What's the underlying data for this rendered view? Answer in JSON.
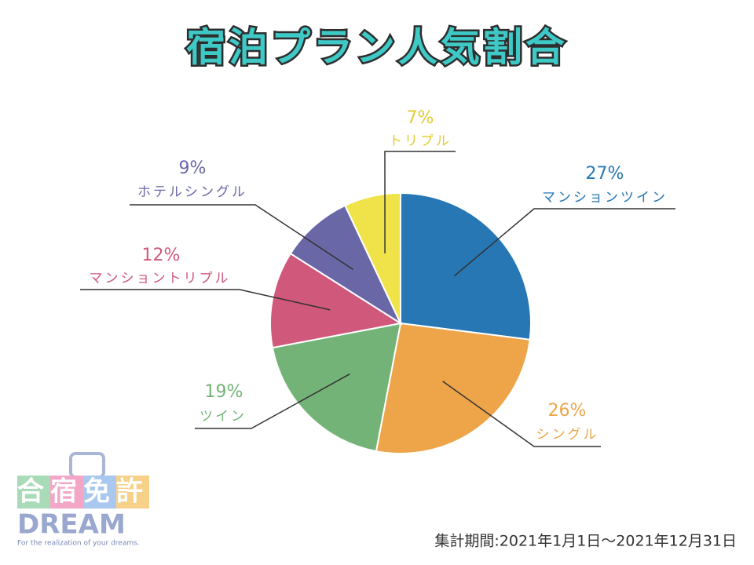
{
  "chart_data": {
    "type": "pie",
    "title": "宿泊プラン人気割合",
    "categories": [
      "マンションツイン",
      "シングル",
      "ツイン",
      "マンショントリプル",
      "ホテルシングル",
      "トリプル"
    ],
    "values": [
      27,
      26,
      19,
      12,
      9,
      7
    ],
    "value_labels": [
      "27%",
      "26%",
      "19%",
      "12%",
      "9%",
      "7%"
    ],
    "colors": [
      "#2777b4",
      "#eea54a",
      "#74b377",
      "#d0587b",
      "#6a67a7",
      "#f0e34a"
    ],
    "note": "集計期間:2021年1月1日～2021年12月31日"
  },
  "logo": {
    "title": "合宿免許",
    "name": "DREAM",
    "tagline": "For the realization of your dreams."
  }
}
